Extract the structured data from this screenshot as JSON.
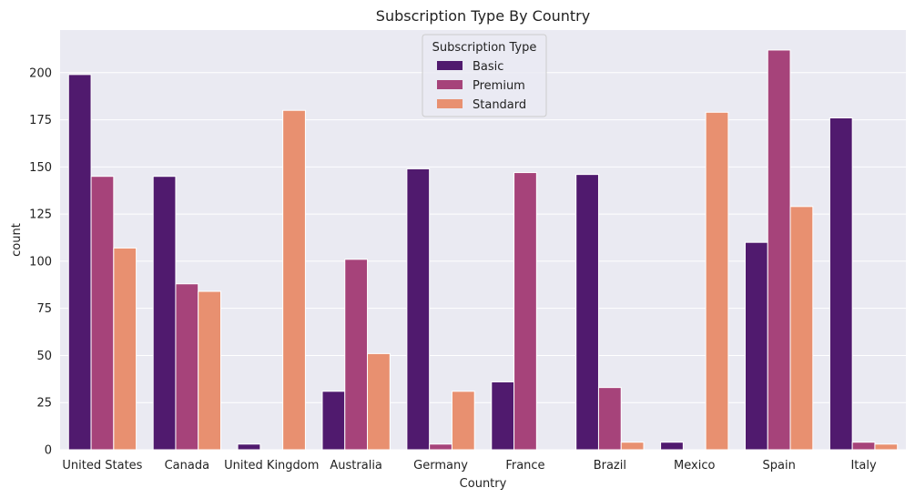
{
  "chart_data": {
    "type": "bar",
    "title": "Subscription Type By Country",
    "xlabel": "Country",
    "ylabel": "count",
    "categories": [
      "United States",
      "Canada",
      "United Kingdom",
      "Australia",
      "Germany",
      "France",
      "Brazil",
      "Mexico",
      "Spain",
      "Italy"
    ],
    "series": [
      {
        "name": "Basic",
        "color": "#501a6e",
        "values": [
          199,
          145,
          3,
          31,
          149,
          36,
          146,
          4,
          110,
          176
        ]
      },
      {
        "name": "Premium",
        "color": "#a6437a",
        "values": [
          145,
          88,
          0,
          101,
          3,
          147,
          33,
          0,
          212,
          4
        ]
      },
      {
        "name": "Standard",
        "color": "#e89070",
        "values": [
          107,
          84,
          180,
          51,
          31,
          0,
          4,
          179,
          129,
          3
        ]
      }
    ],
    "yticks": [
      0,
      25,
      50,
      75,
      100,
      125,
      150,
      175,
      200
    ],
    "ylim": [
      0,
      222.6
    ],
    "grid": true,
    "legend": {
      "title": "Subscription Type",
      "placement": "upper-center"
    },
    "colors": {
      "plot_background": "#eaeaf2",
      "grid": "#ffffff"
    }
  }
}
